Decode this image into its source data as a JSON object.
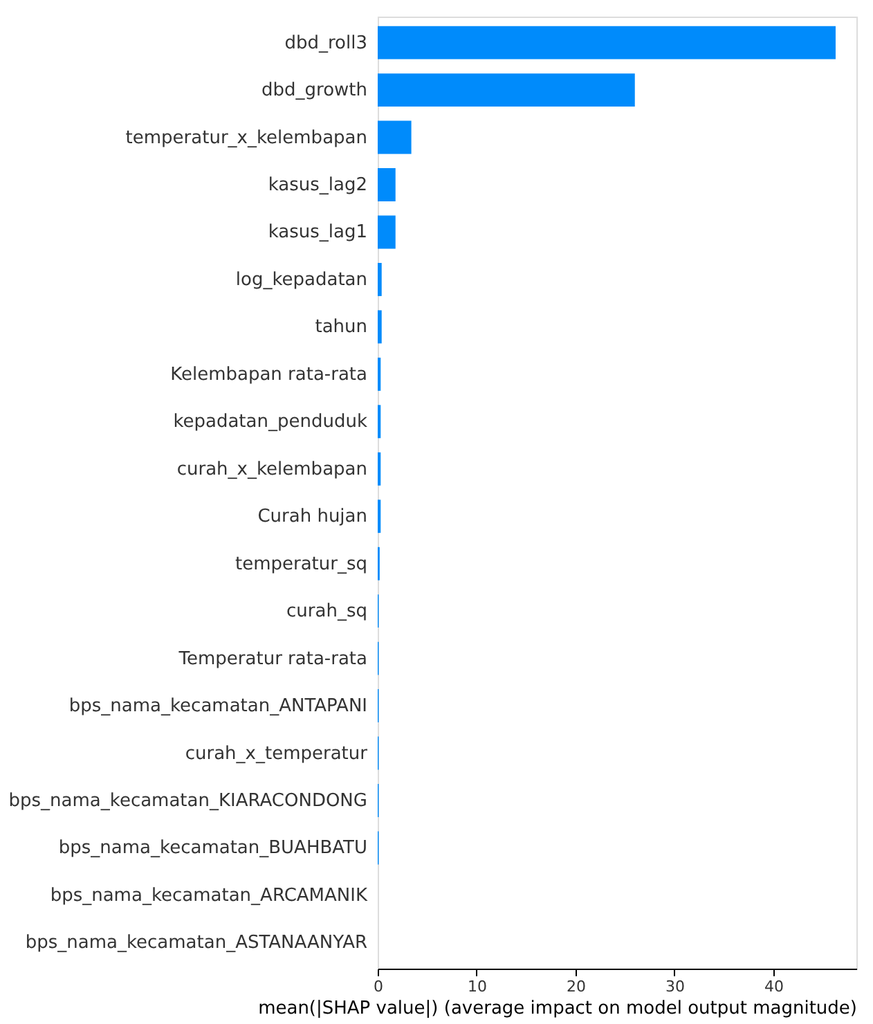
{
  "chart_data": {
    "type": "bar",
    "orientation": "horizontal",
    "xlabel": "mean(|SHAP value|) (average impact on model output magnitude)",
    "categories": [
      "dbd_roll3",
      "dbd_growth",
      "temperatur_x_kelembapan",
      "kasus_lag2",
      "kasus_lag1",
      "log_kepadatan",
      "tahun",
      "Kelembapan rata-rata",
      "kepadatan_penduduk",
      "curah_x_kelembapan",
      "Curah hujan",
      "temperatur_sq",
      "curah_sq",
      "Temperatur rata-rata",
      "bps_nama_kecamatan_ANTAPANI",
      "curah_x_temperatur",
      "bps_nama_kecamatan_KIARACONDONG",
      "bps_nama_kecamatan_BUAHBATU",
      "bps_nama_kecamatan_ARCAMANIK",
      "bps_nama_kecamatan_ASTANAANYAR"
    ],
    "values": [
      46.3,
      26.0,
      3.4,
      1.8,
      1.8,
      0.4,
      0.4,
      0.3,
      0.3,
      0.3,
      0.3,
      0.2,
      0.1,
      0.1,
      0.1,
      0.1,
      0.1,
      0.1,
      0,
      0
    ],
    "color": "#008bfb",
    "xlim": [
      0,
      48.4
    ],
    "xticks": [
      0,
      10,
      20,
      30,
      40
    ],
    "grid": false
  }
}
